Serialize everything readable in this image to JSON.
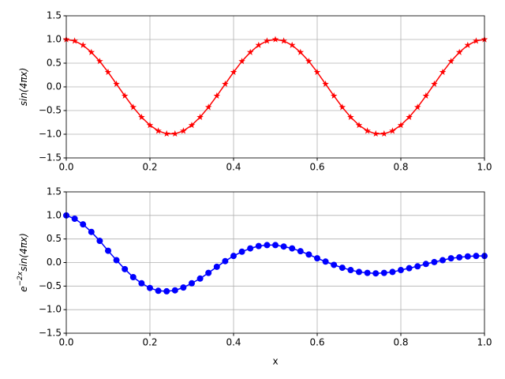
{
  "chart_data": [
    {
      "type": "line",
      "color": "#ff0000",
      "marker": "star",
      "grid": true,
      "ylabel": {
        "base": "sin(4πx)"
      },
      "x": [
        0,
        0.02,
        0.04,
        0.06,
        0.08,
        0.1,
        0.12,
        0.14,
        0.16,
        0.18,
        0.2,
        0.22,
        0.24,
        0.26,
        0.28,
        0.3,
        0.32,
        0.34,
        0.36,
        0.38,
        0.4,
        0.42,
        0.44,
        0.46,
        0.48,
        0.5,
        0.52,
        0.54,
        0.56,
        0.58,
        0.6,
        0.62,
        0.64,
        0.66,
        0.68,
        0.7,
        0.72,
        0.74,
        0.76,
        0.78,
        0.8,
        0.82,
        0.84,
        0.86,
        0.88,
        0.9,
        0.92,
        0.94,
        0.96,
        0.98,
        1
      ],
      "values": [
        1,
        0.97,
        0.88,
        0.73,
        0.54,
        0.31,
        0.06,
        -0.19,
        -0.43,
        -0.64,
        -0.81,
        -0.93,
        -0.99,
        -0.99,
        -0.93,
        -0.81,
        -0.64,
        -0.43,
        -0.19,
        0.06,
        0.31,
        0.54,
        0.73,
        0.88,
        0.97,
        1,
        0.97,
        0.88,
        0.73,
        0.54,
        0.31,
        0.06,
        -0.19,
        -0.43,
        -0.64,
        -0.81,
        -0.93,
        -0.99,
        -0.99,
        -0.93,
        -0.81,
        -0.64,
        -0.43,
        -0.19,
        0.06,
        0.31,
        0.54,
        0.73,
        0.88,
        0.97,
        1
      ],
      "xlim": [
        0,
        1
      ],
      "ylim": [
        -1.5,
        1.5
      ],
      "xticks": [
        {
          "value": 0,
          "label": "0.0"
        },
        0.2,
        0.4,
        0.6,
        0.8,
        {
          "value": 1,
          "label": "1.0"
        }
      ],
      "yticks": [
        {
          "value": -1.5,
          "label": "−1.5"
        },
        {
          "value": -1,
          "label": "−1.0"
        },
        {
          "value": -0.5,
          "label": "−0.5"
        },
        {
          "value": 0,
          "label": "0.0"
        },
        0.5,
        {
          "value": 1,
          "label": "1.0"
        },
        1.5
      ]
    },
    {
      "type": "line",
      "color": "#0000ff",
      "marker": "circle",
      "grid": true,
      "xlabel": "x",
      "ylabel": {
        "base": "e",
        "sup": "−2x",
        "rest": "sin(4πx)"
      },
      "x": [
        0,
        0.02,
        0.04,
        0.06,
        0.08,
        0.1,
        0.12,
        0.14,
        0.16,
        0.18,
        0.2,
        0.22,
        0.24,
        0.26,
        0.28,
        0.3,
        0.32,
        0.34,
        0.36,
        0.38,
        0.4,
        0.42,
        0.44,
        0.46,
        0.48,
        0.5,
        0.52,
        0.54,
        0.56,
        0.58,
        0.6,
        0.62,
        0.64,
        0.66,
        0.68,
        0.7,
        0.72,
        0.74,
        0.76,
        0.78,
        0.8,
        0.82,
        0.84,
        0.86,
        0.88,
        0.9,
        0.92,
        0.94,
        0.96,
        0.98,
        1
      ],
      "values": [
        1,
        0.93,
        0.81,
        0.65,
        0.46,
        0.25,
        0.05,
        -0.14,
        -0.31,
        -0.44,
        -0.54,
        -0.6,
        -0.61,
        -0.59,
        -0.53,
        -0.44,
        -0.34,
        -0.22,
        -0.09,
        0.03,
        0.14,
        0.23,
        0.3,
        0.35,
        0.37,
        0.37,
        0.34,
        0.3,
        0.24,
        0.17,
        0.09,
        0.02,
        -0.05,
        -0.11,
        -0.16,
        -0.2,
        -0.22,
        -0.23,
        -0.22,
        -0.2,
        -0.16,
        -0.12,
        -0.08,
        -0.03,
        0.01,
        0.05,
        0.09,
        0.11,
        0.13,
        0.14,
        0.14
      ],
      "xlim": [
        0,
        1
      ],
      "ylim": [
        -1.5,
        1.5
      ],
      "xticks": [
        {
          "value": 0,
          "label": "0.0"
        },
        0.2,
        0.4,
        0.6,
        0.8,
        {
          "value": 1,
          "label": "1.0"
        }
      ],
      "yticks": [
        {
          "value": -1.5,
          "label": "−1.5"
        },
        {
          "value": -1,
          "label": "−1.0"
        },
        {
          "value": -0.5,
          "label": "−0.5"
        },
        {
          "value": 0,
          "label": "0.0"
        },
        0.5,
        {
          "value": 1,
          "label": "1.0"
        },
        1.5
      ]
    }
  ]
}
